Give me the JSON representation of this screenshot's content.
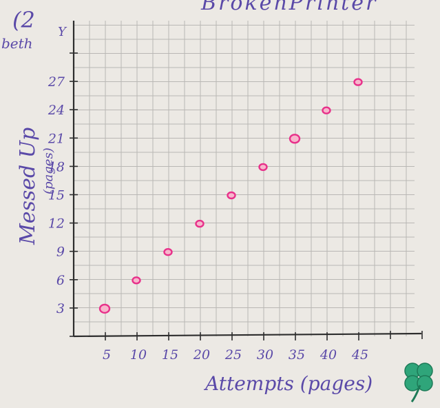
{
  "chart_data": {
    "type": "scatter",
    "title": "BrokenPrinter",
    "corner_text": [
      "(2",
      "beth"
    ],
    "xlabel": "Attempts (pages)",
    "ylabel": "Messed Up",
    "ylabel_sub": "(pages)",
    "y_axis_letter": "Y",
    "x_ticks": [
      "5",
      "10",
      "15",
      "20",
      "25",
      "30",
      "35",
      "40",
      "45"
    ],
    "y_ticks": [
      "3",
      "6",
      "9",
      "12",
      "15",
      "18",
      "21",
      "24",
      "27"
    ],
    "xlim": [
      0,
      50
    ],
    "ylim": [
      0,
      33
    ],
    "grid": true,
    "points": [
      {
        "x": 5,
        "y": 3
      },
      {
        "x": 10,
        "y": 6
      },
      {
        "x": 15,
        "y": 9
      },
      {
        "x": 20,
        "y": 12
      },
      {
        "x": 25,
        "y": 15
      },
      {
        "x": 30,
        "y": 18
      },
      {
        "x": 35,
        "y": 21
      },
      {
        "x": 40,
        "y": 24
      },
      {
        "x": 45,
        "y": 27
      }
    ],
    "colors": {
      "points": "#e8308a",
      "ink": "#5a49a8",
      "grid": "#b9b7b4"
    },
    "decoration": "four-leaf-clover-icon"
  }
}
